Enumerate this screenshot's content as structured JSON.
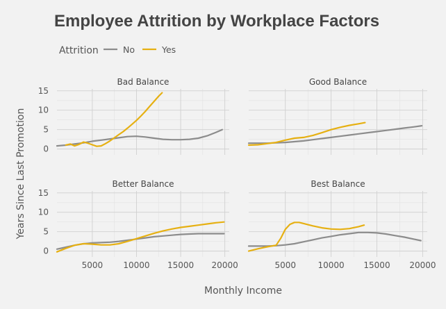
{
  "chart_data": {
    "type": "line",
    "title": "Employee Attrition by Workplace Factors",
    "xlabel": "Monthly Income",
    "ylabel": "Years Since Last Promotion",
    "legend": {
      "title": "Attrition",
      "position": "top-left",
      "entries": [
        {
          "label": "No",
          "color": "#8c8c8c"
        },
        {
          "label": "Yes",
          "color": "#e6b012"
        }
      ]
    },
    "xlim": [
      1000,
      20500
    ],
    "ylim": [
      -1.5,
      15.5
    ],
    "x_ticks": [
      5000,
      10000,
      15000,
      20000
    ],
    "y_ticks": [
      0,
      5,
      10,
      15
    ],
    "grid": true,
    "panels": [
      {
        "label": "Bad Balance",
        "series": [
          {
            "name": "No",
            "x": [
              1000,
              2000,
              3000,
              4000,
              5000,
              6000,
              7000,
              8000,
              9000,
              10000,
              11000,
              12000,
              13000,
              14000,
              15000,
              16000,
              17000,
              18000,
              19000,
              19700
            ],
            "y": [
              0.8,
              1.0,
              1.3,
              1.6,
              2.0,
              2.3,
              2.6,
              2.9,
              3.2,
              3.3,
              3.1,
              2.8,
              2.5,
              2.4,
              2.4,
              2.5,
              2.8,
              3.4,
              4.3,
              5.0
            ]
          },
          {
            "name": "Yes",
            "x": [
              2000,
              2500,
              3000,
              3500,
              4000,
              4500,
              5000,
              5500,
              6000,
              6500,
              7000,
              7500,
              8000,
              8500,
              9000,
              9500,
              10000,
              10500,
              11000,
              11500,
              12000,
              12500,
              12900
            ],
            "y": [
              1.0,
              1.3,
              0.8,
              1.2,
              1.8,
              1.5,
              1.1,
              0.7,
              0.8,
              1.4,
              2.1,
              2.9,
              3.7,
              4.5,
              5.4,
              6.4,
              7.4,
              8.5,
              9.7,
              11.0,
              12.3,
              13.6,
              14.5
            ]
          }
        ]
      },
      {
        "label": "Good Balance",
        "series": [
          {
            "name": "No",
            "x": [
              1000,
              2000,
              3000,
              4000,
              5000,
              6000,
              7000,
              8000,
              9000,
              10000,
              11000,
              12000,
              13000,
              14000,
              15000,
              16000,
              17000,
              18000,
              19000,
              19900
            ],
            "y": [
              1.5,
              1.5,
              1.5,
              1.6,
              1.7,
              1.9,
              2.1,
              2.4,
              2.7,
              3.0,
              3.3,
              3.6,
              3.9,
              4.2,
              4.5,
              4.8,
              5.1,
              5.4,
              5.7,
              6.0
            ]
          },
          {
            "name": "Yes",
            "x": [
              1000,
              2000,
              3000,
              4000,
              5000,
              6000,
              7000,
              8000,
              9000,
              10000,
              11000,
              12000,
              13000,
              13700
            ],
            "y": [
              1.0,
              1.1,
              1.4,
              1.7,
              2.3,
              2.8,
              3.0,
              3.5,
              4.2,
              5.0,
              5.6,
              6.1,
              6.5,
              6.8
            ]
          }
        ]
      },
      {
        "label": "Better Balance",
        "series": [
          {
            "name": "No",
            "x": [
              1000,
              2000,
              3000,
              4000,
              5000,
              6000,
              7000,
              8000,
              9000,
              10000,
              11000,
              12000,
              13000,
              14000,
              15000,
              16000,
              17000,
              18000,
              19000,
              19900
            ],
            "y": [
              0.5,
              1.0,
              1.5,
              1.9,
              2.1,
              2.2,
              2.3,
              2.5,
              2.8,
              3.1,
              3.4,
              3.7,
              3.9,
              4.1,
              4.3,
              4.4,
              4.5,
              4.5,
              4.5,
              4.5
            ]
          },
          {
            "name": "Yes",
            "x": [
              1000,
              2000,
              3000,
              4000,
              5000,
              6000,
              7000,
              8000,
              9000,
              10000,
              11000,
              12000,
              13000,
              14000,
              15000,
              16000,
              17000,
              18000,
              19000,
              19900
            ],
            "y": [
              -0.2,
              0.7,
              1.5,
              1.9,
              1.8,
              1.6,
              1.6,
              1.9,
              2.5,
              3.2,
              3.9,
              4.6,
              5.2,
              5.7,
              6.1,
              6.4,
              6.7,
              7.0,
              7.3,
              7.5
            ]
          }
        ]
      },
      {
        "label": "Best Balance",
        "series": [
          {
            "name": "No",
            "x": [
              1000,
              2000,
              3000,
              4000,
              5000,
              6000,
              7000,
              8000,
              9000,
              10000,
              11000,
              12000,
              13000,
              14000,
              15000,
              16000,
              17000,
              18000,
              19000,
              19800
            ],
            "y": [
              1.3,
              1.3,
              1.3,
              1.4,
              1.6,
              1.9,
              2.4,
              2.9,
              3.4,
              3.8,
              4.2,
              4.5,
              4.8,
              4.8,
              4.7,
              4.4,
              4.0,
              3.6,
              3.1,
              2.7
            ]
          },
          {
            "name": "Yes",
            "x": [
              1000,
              2000,
              3000,
              4000,
              4500,
              5000,
              5500,
              6000,
              6500,
              7000,
              8000,
              9000,
              10000,
              11000,
              12000,
              13000,
              13600
            ],
            "y": [
              0.0,
              0.6,
              1.1,
              1.5,
              3.3,
              5.6,
              6.9,
              7.4,
              7.4,
              7.1,
              6.5,
              6.0,
              5.7,
              5.6,
              5.8,
              6.3,
              6.7
            ]
          }
        ]
      }
    ]
  }
}
